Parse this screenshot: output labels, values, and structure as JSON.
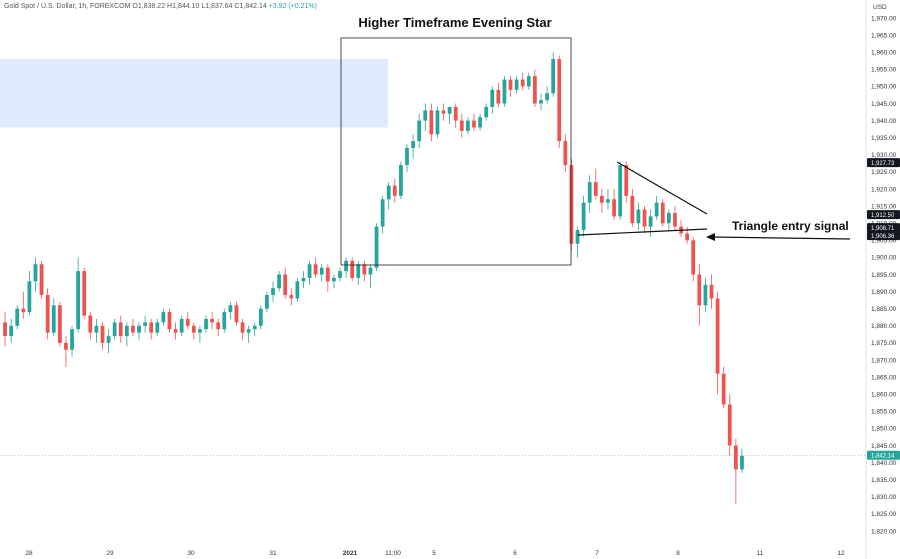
{
  "header": {
    "symbol": "Gold Spot / U.S. Dollar, 1h, FOREXCOM",
    "open": "O1,838.22",
    "high": "H1,844.10",
    "low": "L1,837.64",
    "close": "C1,842.14",
    "change": "+3.92 (+0.21%)"
  },
  "colors": {
    "up": "#26a69a",
    "down": "#ef5350",
    "zone": "#dce8ff",
    "tag_dark": "#131722",
    "tag_last": "#26a69a"
  },
  "chart_data": {
    "type": "candlestick",
    "title": "",
    "currency_label": "USD",
    "y_ticks": [
      "1,970.00",
      "1,965.00",
      "1,960.00",
      "1,955.00",
      "1,950.00",
      "1,945.00",
      "1,940.00",
      "1,935.00",
      "1,930.00",
      "1,925.00",
      "1,920.00",
      "1,915.00",
      "1,910.00",
      "1,905.00",
      "1,900.00",
      "1,895.00",
      "1,890.00",
      "1,885.00",
      "1,880.00",
      "1,875.00",
      "1,870.00",
      "1,865.00",
      "1,860.00",
      "1,855.00",
      "1,850.00",
      "1,845.00",
      "1,840.00",
      "1,835.00",
      "1,830.00",
      "1,825.00",
      "1,820.00"
    ],
    "ylim": [
      1818,
      1973
    ],
    "x_ticks": [
      "28",
      "29",
      "30",
      "31",
      "2021",
      "11:00",
      "5",
      "6",
      "7",
      "8",
      "11",
      "12"
    ],
    "price_tags": [
      {
        "label": "1,927.73",
        "value": 1927.73,
        "style": "dark"
      },
      {
        "label": "1,912.50",
        "value": 1912.5,
        "style": "dark"
      },
      {
        "label": "1,908.71",
        "value": 1908.71,
        "style": "dark"
      },
      {
        "label": "1,906.36",
        "value": 1906.36,
        "style": "dark"
      },
      {
        "label": "1,842.14",
        "value": 1842.14,
        "style": "last"
      }
    ],
    "annotations": {
      "evening_star": "Higher Timeframe Evening Star",
      "triangle": "Triangle entry signal"
    },
    "resistance_zone": {
      "from": 1938,
      "to": 1958
    },
    "candles": [
      [
        1881,
        1884,
        1874,
        1877
      ],
      [
        1877,
        1882,
        1875,
        1880
      ],
      [
        1880,
        1886,
        1879,
        1885
      ],
      [
        1885,
        1890,
        1882,
        1884
      ],
      [
        1884,
        1896,
        1883,
        1893
      ],
      [
        1893,
        1900,
        1890,
        1898
      ],
      [
        1898,
        1899,
        1888,
        1889
      ],
      [
        1889,
        1891,
        1876,
        1878
      ],
      [
        1878,
        1888,
        1877,
        1886
      ],
      [
        1886,
        1887,
        1874,
        1875
      ],
      [
        1875,
        1877,
        1868,
        1873
      ],
      [
        1873,
        1880,
        1871,
        1879
      ],
      [
        1879,
        1900,
        1878,
        1896
      ],
      [
        1896,
        1897,
        1882,
        1883
      ],
      [
        1883,
        1884,
        1876,
        1878
      ],
      [
        1878,
        1882,
        1875,
        1880
      ],
      [
        1880,
        1881,
        1873,
        1875
      ],
      [
        1875,
        1879,
        1872,
        1877
      ],
      [
        1877,
        1882,
        1876,
        1881
      ],
      [
        1881,
        1883,
        1875,
        1877
      ],
      [
        1877,
        1881,
        1874,
        1880
      ],
      [
        1880,
        1882,
        1877,
        1878
      ],
      [
        1878,
        1881,
        1876,
        1880
      ],
      [
        1880,
        1883,
        1878,
        1881
      ],
      [
        1881,
        1882,
        1876,
        1878
      ],
      [
        1878,
        1882,
        1877,
        1881
      ],
      [
        1881,
        1885,
        1880,
        1884
      ],
      [
        1884,
        1885,
        1878,
        1879
      ],
      [
        1879,
        1881,
        1876,
        1878
      ],
      [
        1878,
        1883,
        1877,
        1882
      ],
      [
        1882,
        1884,
        1879,
        1880
      ],
      [
        1880,
        1881,
        1876,
        1878
      ],
      [
        1878,
        1880,
        1875,
        1879
      ],
      [
        1879,
        1883,
        1878,
        1882
      ],
      [
        1882,
        1884,
        1879,
        1881
      ],
      [
        1881,
        1882,
        1877,
        1879
      ],
      [
        1879,
        1885,
        1878,
        1884
      ],
      [
        1884,
        1887,
        1882,
        1886
      ],
      [
        1886,
        1887,
        1880,
        1881
      ],
      [
        1881,
        1882,
        1876,
        1878
      ],
      [
        1878,
        1880,
        1875,
        1879
      ],
      [
        1879,
        1881,
        1877,
        1880
      ],
      [
        1880,
        1886,
        1879,
        1885
      ],
      [
        1885,
        1890,
        1884,
        1889
      ],
      [
        1889,
        1893,
        1887,
        1891
      ],
      [
        1891,
        1896,
        1890,
        1895
      ],
      [
        1895,
        1897,
        1888,
        1889
      ],
      [
        1889,
        1891,
        1886,
        1888
      ],
      [
        1888,
        1894,
        1887,
        1893
      ],
      [
        1893,
        1896,
        1891,
        1894
      ],
      [
        1894,
        1899,
        1892,
        1898
      ],
      [
        1898,
        1900,
        1894,
        1895
      ],
      [
        1895,
        1898,
        1893,
        1897
      ],
      [
        1897,
        1898,
        1890,
        1893
      ],
      [
        1893,
        1895,
        1891,
        1894
      ],
      [
        1894,
        1897,
        1893,
        1896
      ],
      [
        1896,
        1900,
        1894,
        1899
      ],
      [
        1899,
        1900,
        1893,
        1894
      ],
      [
        1894,
        1899,
        1892,
        1898
      ],
      [
        1898,
        1899,
        1893,
        1895
      ],
      [
        1895,
        1898,
        1891,
        1897
      ],
      [
        1897,
        1910,
        1896,
        1909
      ],
      [
        1909,
        1918,
        1907,
        1917
      ],
      [
        1917,
        1922,
        1914,
        1921
      ],
      [
        1921,
        1923,
        1916,
        1918
      ],
      [
        1918,
        1928,
        1917,
        1927
      ],
      [
        1927,
        1933,
        1925,
        1932
      ],
      [
        1932,
        1936,
        1929,
        1934
      ],
      [
        1934,
        1942,
        1932,
        1940
      ],
      [
        1940,
        1945,
        1937,
        1943
      ],
      [
        1943,
        1945,
        1934,
        1936
      ],
      [
        1936,
        1944,
        1935,
        1943
      ],
      [
        1943,
        1945,
        1940,
        1942
      ],
      [
        1942,
        1944,
        1939,
        1944
      ],
      [
        1944,
        1945,
        1938,
        1940
      ],
      [
        1940,
        1942,
        1935,
        1937
      ],
      [
        1937,
        1941,
        1936,
        1940
      ],
      [
        1940,
        1942,
        1937,
        1938
      ],
      [
        1938,
        1942,
        1937,
        1941
      ],
      [
        1941,
        1945,
        1940,
        1944
      ],
      [
        1944,
        1950,
        1942,
        1949
      ],
      [
        1949,
        1951,
        1944,
        1945
      ],
      [
        1945,
        1953,
        1944,
        1952
      ],
      [
        1952,
        1953,
        1947,
        1949
      ],
      [
        1949,
        1953,
        1948,
        1952
      ],
      [
        1952,
        1954,
        1949,
        1950
      ],
      [
        1950,
        1954,
        1949,
        1953
      ],
      [
        1953,
        1955,
        1944,
        1945
      ],
      [
        1945,
        1948,
        1943,
        1946
      ],
      [
        1946,
        1950,
        1945,
        1948
      ],
      [
        1948,
        1960,
        1947,
        1958
      ],
      [
        1958,
        1959,
        1932,
        1934
      ],
      [
        1934,
        1936,
        1925,
        1927
      ],
      [
        1927,
        1929,
        1902,
        1904
      ],
      [
        1904,
        1909,
        1900,
        1908
      ],
      [
        1908,
        1918,
        1906,
        1916
      ],
      [
        1916,
        1924,
        1913,
        1922
      ],
      [
        1922,
        1926,
        1917,
        1918
      ],
      [
        1918,
        1920,
        1913,
        1916
      ],
      [
        1916,
        1920,
        1914,
        1917
      ],
      [
        1917,
        1920,
        1911,
        1912
      ],
      [
        1912,
        1928,
        1911,
        1927
      ],
      [
        1927,
        1928,
        1916,
        1918
      ],
      [
        1918,
        1920,
        1909,
        1910
      ],
      [
        1910,
        1916,
        1908,
        1914
      ],
      [
        1914,
        1915,
        1907,
        1909
      ],
      [
        1909,
        1914,
        1906,
        1912
      ],
      [
        1912,
        1918,
        1911,
        1916
      ],
      [
        1916,
        1917,
        1909,
        1910
      ],
      [
        1910,
        1914,
        1908,
        1913
      ],
      [
        1913,
        1915,
        1908,
        1909
      ],
      [
        1909,
        1911,
        1906,
        1907
      ],
      [
        1907,
        1909,
        1904,
        1905
      ],
      [
        1905,
        1906,
        1893,
        1895
      ],
      [
        1895,
        1898,
        1880,
        1886
      ],
      [
        1886,
        1894,
        1884,
        1892
      ],
      [
        1892,
        1895,
        1885,
        1888
      ],
      [
        1888,
        1890,
        1860,
        1866
      ],
      [
        1866,
        1868,
        1856,
        1857
      ],
      [
        1857,
        1860,
        1842,
        1845
      ],
      [
        1845,
        1847,
        1828,
        1838
      ],
      [
        1838,
        1844,
        1837,
        1842
      ]
    ]
  }
}
